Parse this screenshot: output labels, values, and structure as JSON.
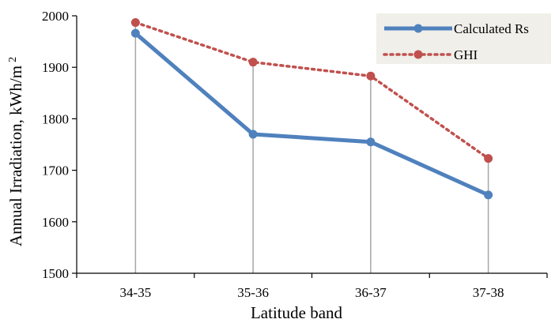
{
  "chart_data": {
    "type": "line",
    "categories": [
      "34-35",
      "35-36",
      "36-37",
      "37-38"
    ],
    "series": [
      {
        "name": "Calculated Rs",
        "values": [
          1966,
          1770,
          1755,
          1652
        ],
        "color": "#4f81bd",
        "style": "solid"
      },
      {
        "name": "GHI",
        "values": [
          1987,
          1910,
          1883,
          1723
        ],
        "color": "#c0504d",
        "style": "dotted"
      }
    ],
    "xlabel": "Latitude band",
    "ylabel": "Annual Irradiation, kWh/m",
    "ylabel_superscript": "2",
    "ylim": [
      1500,
      2000
    ],
    "yticks": [
      "1500",
      "1600",
      "1700",
      "1800",
      "1900",
      "2000"
    ],
    "drop_lines": true,
    "grid": false,
    "legend_position": "top-right"
  }
}
